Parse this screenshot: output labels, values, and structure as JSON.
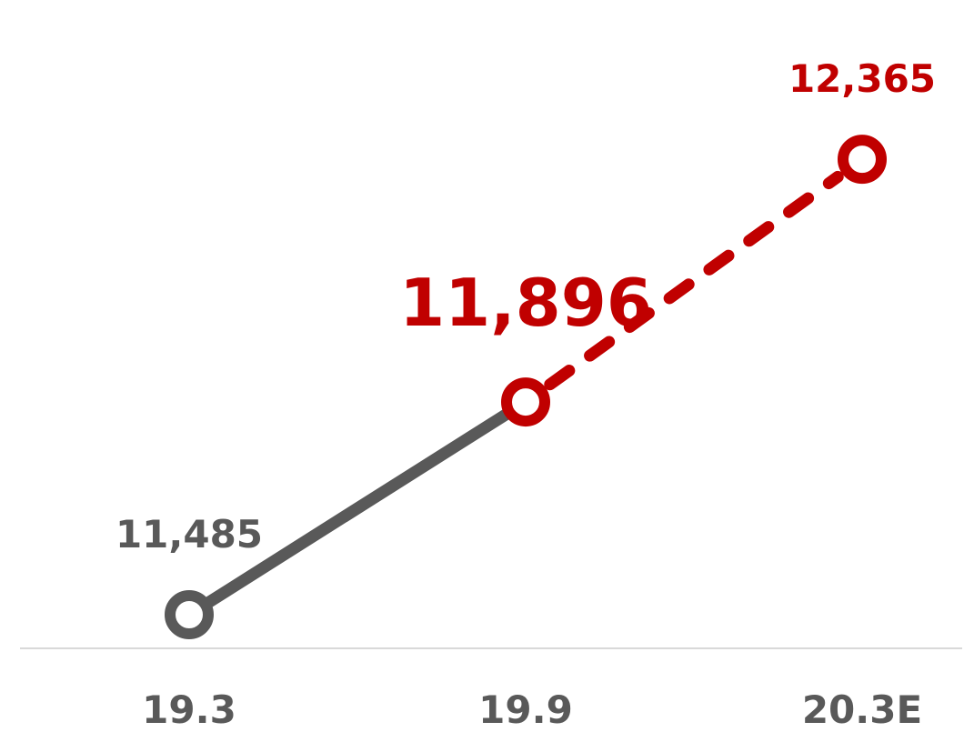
{
  "chart_data": {
    "type": "line",
    "categories": [
      "19.3",
      "19.9",
      "20.3E"
    ],
    "values": [
      11485,
      11896,
      12365
    ],
    "data_labels": [
      "11,485",
      "11,896",
      "12,365"
    ],
    "actual_count": 2,
    "forecast_from_index": 1,
    "ylim": [
      11420,
      12620
    ],
    "grid": false,
    "legend": "none",
    "title": "",
    "xlabel": "",
    "ylabel": "",
    "colors": {
      "actual": "#595959",
      "forecast": "#C00000",
      "axis": "#D9D9D9",
      "marker_fill": "#FFFFFF"
    }
  }
}
